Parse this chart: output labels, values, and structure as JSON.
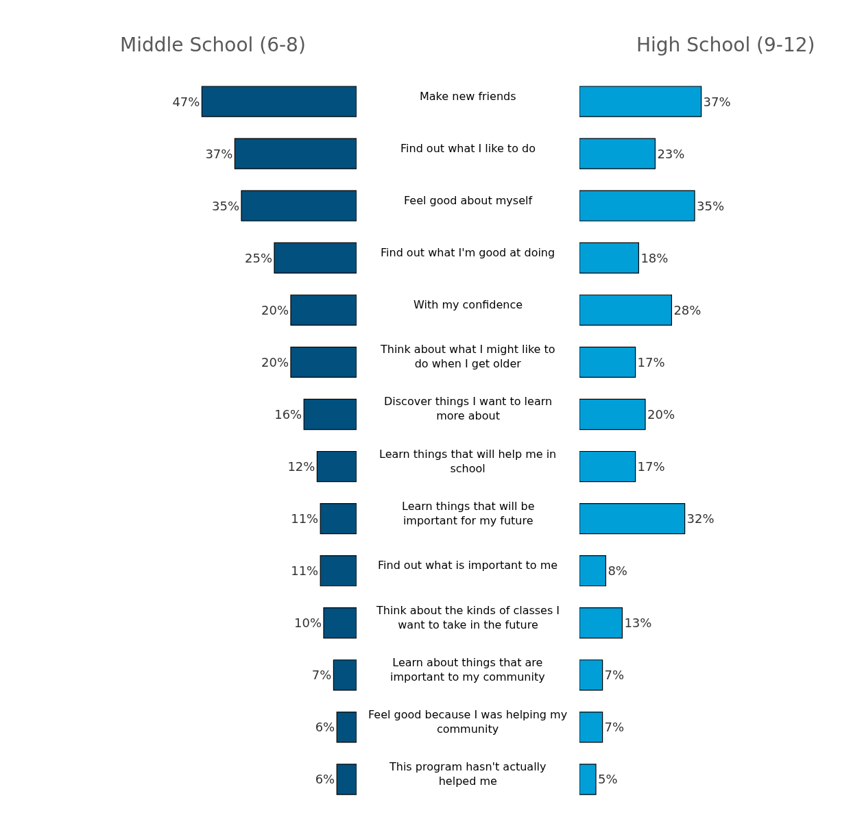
{
  "chart_data": [
    {
      "type": "bar",
      "orientation": "horizontal",
      "title": "Middle School (6-8)",
      "color": "#02507e",
      "categories": [
        "Make new friends",
        "Find out what I like to do",
        "Feel good about myself",
        "Find out what I'm good at doing",
        "With my confidence",
        "Think about what I might like to do when I get older",
        "Discover things I want to learn more about",
        "Learn things that will help me in school",
        "Learn things that will be important for my future",
        "Find out what is important to me",
        "Think about the kinds of classes I want to take in the future",
        "Learn about things that are important to my community",
        "Feel good because I was helping my community",
        "This program hasn't actually helped me"
      ],
      "values": [
        47,
        37,
        35,
        25,
        20,
        20,
        16,
        12,
        11,
        11,
        10,
        7,
        6,
        6
      ],
      "value_labels": [
        "47%",
        "37%",
        "35%",
        "25%",
        "20%",
        "20%",
        "16%",
        "12%",
        "11%",
        "11%",
        "10%",
        "7%",
        "6%",
        "6%"
      ]
    },
    {
      "type": "bar",
      "orientation": "horizontal",
      "title": "High School (9-12)",
      "color": "#019fd8",
      "categories": [
        null,
        null,
        null,
        null,
        null,
        null,
        null,
        null,
        null,
        null,
        null,
        null,
        null,
        null
      ],
      "values": [
        37,
        23,
        35,
        18,
        28,
        17,
        20,
        17,
        32,
        8,
        13,
        7,
        7,
        5
      ],
      "value_labels": [
        "37%",
        "23%",
        "35%",
        "18%",
        "28%",
        "17%",
        "20%",
        "17%",
        "32%",
        "8%",
        "13%",
        "7%",
        "7%",
        "5%"
      ]
    }
  ]
}
